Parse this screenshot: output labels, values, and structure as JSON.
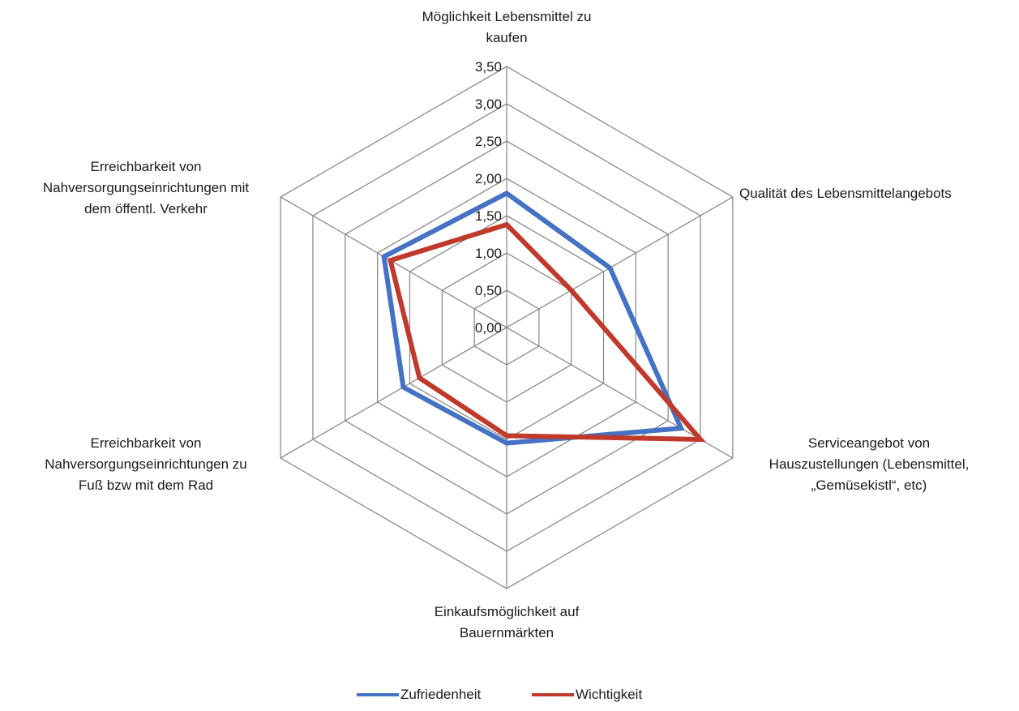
{
  "chart_data": {
    "type": "radar",
    "axes": [
      "Möglichkeit Lebensmittel zu kaufen",
      "Qualität des Lebensmittelangebots",
      "Serviceangebot von Hauszustellungen (Lebensmittel, „Gemüsekistl“, etc)",
      "Einkaufsmöglichkeit auf Bauernmärkten",
      "Erreichbarkeit von Nahversorgungseinrichtungen zu Fuß bzw mit dem Rad",
      "Erreichbarkeit von Nahversorgungseinrichtungen mit dem öffentl. Verkehr"
    ],
    "axis_label_lines": [
      [
        "Möglichkeit Lebensmittel zu",
        "kaufen"
      ],
      [
        "Qualität des Lebensmittelangebots"
      ],
      [
        "Serviceangebot von",
        "Hauszustellungen (Lebensmittel,",
        "„Gemüsekistl“, etc)"
      ],
      [
        "Einkaufsmöglichkeit auf",
        "Bauernmärkten"
      ],
      [
        "Erreichbarkeit von",
        "Nahversorgungseinrichtungen zu",
        "Fuß bzw mit dem Rad"
      ],
      [
        "Erreichbarkeit von",
        "Nahversorgungseinrichtungen mit",
        "dem öffentl. Verkehr"
      ]
    ],
    "ticks": [
      "0,00",
      "0,50",
      "1,00",
      "1,50",
      "2,00",
      "2,50",
      "3,00",
      "3,50"
    ],
    "range": [
      0,
      3.5
    ],
    "grid": true,
    "legend_position": "bottom",
    "series": [
      {
        "name": "Zufriedenheit",
        "color": "#4472C4",
        "values": [
          1.8,
          1.6,
          2.7,
          1.55,
          1.6,
          1.9
        ]
      },
      {
        "name": "Wichtigkeit",
        "color": "#C0392B",
        "values": [
          1.38,
          1.0,
          3.0,
          1.45,
          1.35,
          1.8
        ]
      }
    ]
  }
}
